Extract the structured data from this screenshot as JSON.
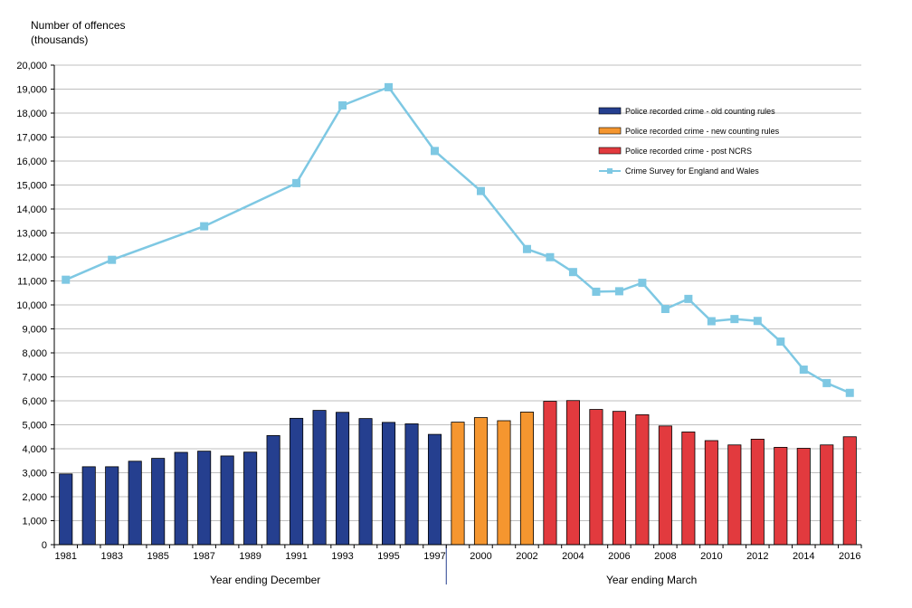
{
  "chart_data": {
    "type": "bar+line",
    "ylabel_line1": "Number of offences",
    "ylabel_line2": "(thousands)",
    "ylim": [
      0,
      20000
    ],
    "ytick_step": 1000,
    "grid": true,
    "legend_position": "top-right",
    "groups": [
      {
        "label": "Year ending December",
        "from": 0,
        "to": 16
      },
      {
        "label": "Year ending March",
        "from": 17,
        "to": 34
      }
    ],
    "categories": [
      "1981",
      "1982",
      "1983",
      "1984",
      "1985",
      "1986",
      "1987",
      "1988",
      "1989",
      "1990",
      "1991",
      "1992",
      "1993",
      "1994",
      "1995",
      "1996",
      "1997",
      "1998",
      "2000",
      "2001",
      "2002",
      "2003",
      "2004",
      "2005",
      "2006",
      "2007",
      "2008",
      "2009",
      "2010",
      "2011",
      "2012",
      "2013",
      "2014",
      "2015",
      "2016"
    ],
    "x_tick_labels": [
      "1981",
      "",
      "1983",
      "",
      "1985",
      "",
      "1987",
      "",
      "1989",
      "",
      "1991",
      "",
      "1993",
      "",
      "1995",
      "",
      "1997",
      "",
      "2000",
      "",
      "2002",
      "",
      "2004",
      "",
      "2006",
      "",
      "2008",
      "",
      "2010",
      "",
      "2012",
      "",
      "2014",
      "",
      "2016"
    ],
    "bar_series": [
      {
        "name": "Police recorded crime - old counting rules",
        "color": "#253f8f",
        "values": [
          2950,
          3250,
          3250,
          3480,
          3600,
          3850,
          3900,
          3700,
          3860,
          4550,
          5270,
          5600,
          5520,
          5260,
          5100,
          5040,
          4600,
          null,
          null,
          null,
          null,
          null,
          null,
          null,
          null,
          null,
          null,
          null,
          null,
          null,
          null,
          null,
          null,
          null,
          null
        ]
      },
      {
        "name": "Police recorded crime - new counting rules",
        "color": "#f5962f",
        "values": [
          null,
          null,
          null,
          null,
          null,
          null,
          null,
          null,
          null,
          null,
          null,
          null,
          null,
          null,
          null,
          null,
          null,
          5110,
          5300,
          5170,
          5530,
          null,
          null,
          null,
          null,
          null,
          null,
          null,
          null,
          null,
          null,
          null,
          null,
          null,
          null
        ]
      },
      {
        "name": "Police recorded crime - post NCRS",
        "color": "#e23a3e",
        "values": [
          null,
          null,
          null,
          null,
          null,
          null,
          null,
          null,
          null,
          null,
          null,
          null,
          null,
          null,
          null,
          null,
          null,
          null,
          null,
          null,
          null,
          5980,
          6010,
          5640,
          5560,
          5420,
          4950,
          4700,
          4340,
          4160,
          4400,
          4060,
          4020,
          4160,
          4500
        ]
      }
    ],
    "line_series": {
      "name": "Crime Survey for England and Wales",
      "color": "#7ec8e3",
      "points": [
        {
          "i": 0,
          "value": 11050
        },
        {
          "i": 2,
          "value": 11880
        },
        {
          "i": 6,
          "value": 13280
        },
        {
          "i": 10,
          "value": 15080
        },
        {
          "i": 12,
          "value": 18320
        },
        {
          "i": 14,
          "value": 19080
        },
        {
          "i": 16,
          "value": 16420
        },
        {
          "i": 18,
          "value": 14750
        },
        {
          "i": 20,
          "value": 12330
        },
        {
          "i": 21,
          "value": 11990
        },
        {
          "i": 22,
          "value": 11370
        },
        {
          "i": 23,
          "value": 10550
        },
        {
          "i": 24,
          "value": 10570
        },
        {
          "i": 25,
          "value": 10920
        },
        {
          "i": 26,
          "value": 9830
        },
        {
          "i": 27,
          "value": 10250
        },
        {
          "i": 28,
          "value": 9320
        },
        {
          "i": 29,
          "value": 9410
        },
        {
          "i": 30,
          "value": 9330
        },
        {
          "i": 31,
          "value": 8470
        },
        {
          "i": 32,
          "value": 7300
        },
        {
          "i": 33,
          "value": 6740
        },
        {
          "i": 34,
          "value": 6330
        }
      ]
    }
  }
}
